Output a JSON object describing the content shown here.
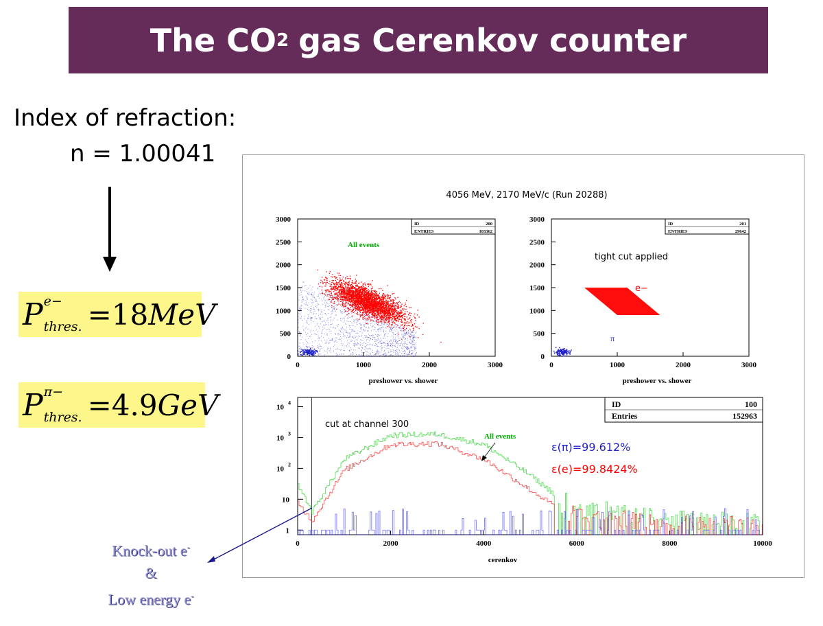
{
  "slide": {
    "title_main": "The CO",
    "title_sub": "2",
    "title_rest": "gas Cerenkov counter",
    "index_label": "Index of refraction:",
    "index_value": "n  = 1.00041",
    "formula_e": {
      "sup": "e−",
      "sub": "thres.",
      "rhs": "=18",
      "unit": "MeV"
    },
    "formula_pi": {
      "sup": "π−",
      "sub": "thres.",
      "rhs": "=4.9",
      "unit": "GeV"
    },
    "knock_line1": "Knock-out e",
    "knock_sup": "-",
    "knock_amp": "&",
    "knock_line3": "Low energy e",
    "knock_sup3": "-"
  },
  "colors": {
    "banner": "#652c5a",
    "formula_bg": "#fcf68b",
    "red": "#ff0000",
    "green": "#00aa00",
    "blue": "#2222cc"
  },
  "chart_data": [
    {
      "type": "scatter",
      "title": "4056 MeV, 2170 MeV/c  (Run 20288)",
      "xlabel": "preshower vs. shower",
      "xlim": [
        0,
        3000
      ],
      "ylim": [
        0,
        3000
      ],
      "x_ticks": [
        "0",
        "1000",
        "2000",
        "3000"
      ],
      "y_ticks": [
        "0",
        "500",
        "1000",
        "1500",
        "2000",
        "2500",
        "3000"
      ],
      "stats": {
        "id_label": "ID",
        "id": "200",
        "entries_label": "ENTRIES",
        "entries": "103362"
      },
      "annotation": "All events",
      "series": [
        {
          "color": "#ff0000",
          "region": {
            "center": [
              1000,
              1250
            ],
            "extent": "broad ellipse"
          }
        },
        {
          "color": "#2222cc",
          "region": {
            "center": [
              700,
              800
            ],
            "extent": "diffuse"
          }
        }
      ]
    },
    {
      "type": "scatter",
      "xlabel": "preshower vs. shower",
      "xlim": [
        0,
        3000
      ],
      "ylim": [
        0,
        3000
      ],
      "x_ticks": [
        "0",
        "1000",
        "2000",
        "3000"
      ],
      "y_ticks": [
        "0",
        "500",
        "1000",
        "1500",
        "2000",
        "2500",
        "3000"
      ],
      "stats": {
        "id_label": "ID",
        "id": "201",
        "entries_label": "ENTRIES",
        "entries": "29642"
      },
      "annotation": "tight cut applied",
      "labels": {
        "e": "e−",
        "pi": "π"
      },
      "series": [
        {
          "color": "#ff0000",
          "polygon": [
            [
              500,
              1500
            ],
            [
              1150,
              1500
            ],
            [
              1650,
              900
            ],
            [
              1000,
              900
            ]
          ]
        },
        {
          "color": "#2222cc",
          "cluster": [
            150,
            100
          ]
        }
      ]
    },
    {
      "type": "line",
      "xlabel": "cerenkov",
      "xlim": [
        0,
        10000
      ],
      "y_scale": "log",
      "y_ticks": [
        "1",
        "10",
        "10 2",
        "10 3",
        "10 4"
      ],
      "x_ticks": [
        "0",
        "2000",
        "4000",
        "6000",
        "8000",
        "10000"
      ],
      "stats": {
        "id_label": "ID",
        "id": "100",
        "entries_label": "Entries",
        "entries": "152963"
      },
      "cut_label": "cut at channel 300",
      "cut_x": 300,
      "annotation": "All events",
      "eff_pi": "ε(π)=99.612%",
      "eff_e": "ε(e)=99.8424%",
      "series": [
        {
          "color": "#00cc00",
          "x": [
            0,
            300,
            1000,
            2000,
            3000,
            4000,
            5000,
            6000,
            8000,
            10000
          ],
          "y": [
            30,
            4,
            200,
            1200,
            1300,
            600,
            60,
            4,
            2,
            1
          ]
        },
        {
          "color": "#ff0000",
          "x": [
            0,
            300,
            1000,
            2000,
            3000,
            4000,
            5000,
            6000,
            8000,
            10000
          ],
          "y": [
            8,
            2,
            90,
            600,
            650,
            200,
            20,
            2,
            1,
            1
          ]
        },
        {
          "color": "#3333ff",
          "x": [
            0,
            300,
            1000,
            2000,
            3000,
            4000,
            5000,
            6000,
            8000,
            10000
          ],
          "y": [
            40,
            3,
            2,
            1,
            1,
            1,
            1,
            1,
            0,
            0
          ]
        }
      ]
    }
  ]
}
